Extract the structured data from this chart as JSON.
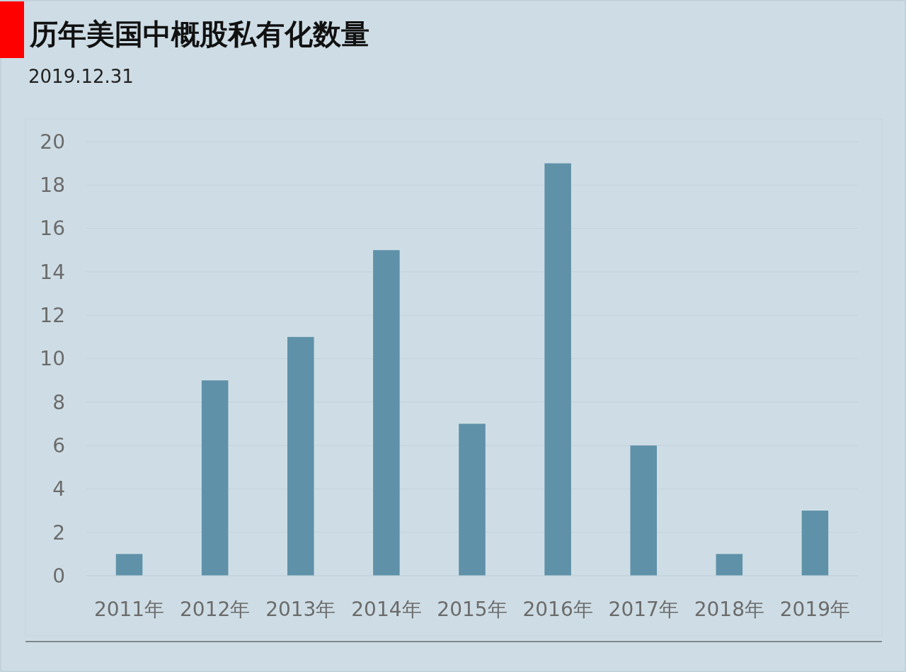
{
  "chart_data": {
    "type": "bar",
    "title": "历年美国中概股私有化数量",
    "subtitle": "2019.12.31",
    "categories": [
      "2011年",
      "2012年",
      "2013年",
      "2014年",
      "2015年",
      "2016年",
      "2017年",
      "2018年",
      "2019年"
    ],
    "values": [
      1,
      9,
      11,
      15,
      7,
      19,
      6,
      1,
      3
    ],
    "color": "#5f91a9",
    "ylim": [
      0,
      20
    ],
    "yticks": [
      0,
      2,
      4,
      6,
      8,
      10,
      12,
      14,
      16,
      18,
      20
    ],
    "grid": "y"
  }
}
